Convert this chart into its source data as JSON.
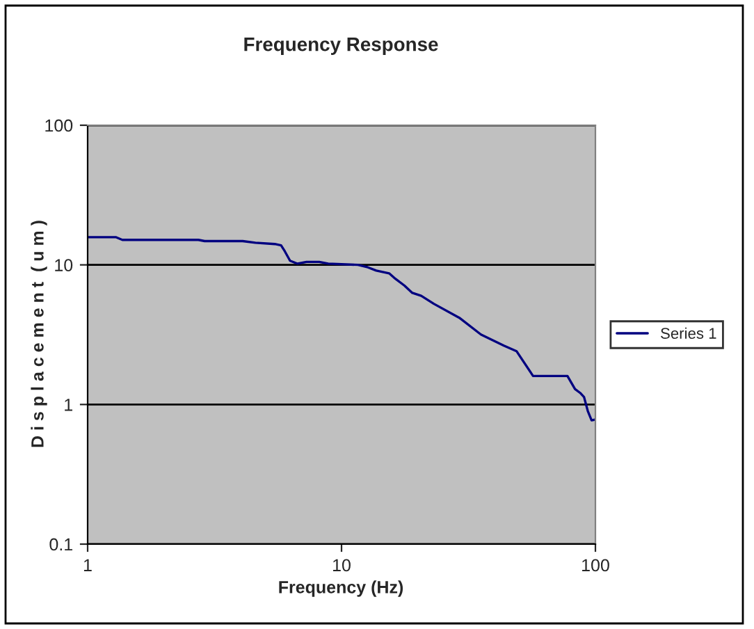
{
  "chart_data": {
    "type": "line",
    "title": "Frequency Response",
    "xlabel": "Frequency (Hz)",
    "ylabel": "D i s p l a c e m e n t  ( u m )",
    "log": "xy",
    "xlim": [
      1,
      100
    ],
    "ylim": [
      0.1,
      100
    ],
    "xticks": [
      1,
      10,
      100
    ],
    "yticks": [
      0.1,
      1,
      10,
      100
    ],
    "grid": "y",
    "legend": "right",
    "series": [
      {
        "name": "Series 1",
        "color": "#000080",
        "x": [
          1,
          1.29,
          1.37,
          2.73,
          2.89,
          4.08,
          4.58,
          5.46,
          5.78,
          5.98,
          6.27,
          6.71,
          7.28,
          8.17,
          8.86,
          11.6,
          12.7,
          13.7,
          15.4,
          16.3,
          17.7,
          19.0,
          20.6,
          23.1,
          29.1,
          35.4,
          43.6,
          48.9,
          56.8,
          77.6,
          83.1,
          87.1,
          90.2,
          93.3,
          96.6,
          100
        ],
        "values": [
          15.8,
          15.8,
          15.1,
          15.1,
          14.8,
          14.8,
          14.4,
          14.1,
          13.8,
          12.5,
          10.7,
          10.2,
          10.5,
          10.5,
          10.2,
          10,
          9.6,
          9.1,
          8.7,
          7.95,
          7.1,
          6.3,
          6.0,
          5.26,
          4.18,
          3.17,
          2.64,
          2.41,
          1.6,
          1.6,
          1.29,
          1.21,
          1.13,
          0.9,
          0.77,
          0.78
        ]
      }
    ]
  }
}
